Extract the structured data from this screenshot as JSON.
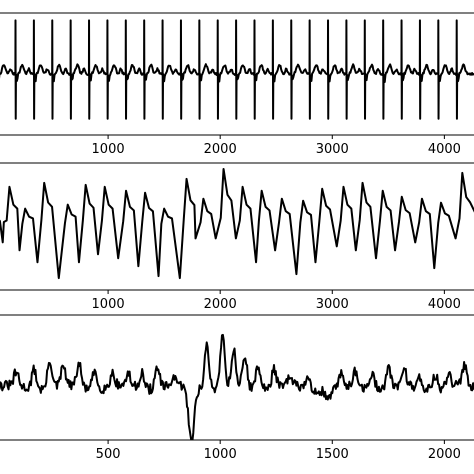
{
  "chart_data": [
    {
      "type": "line",
      "signal": "ecg",
      "xlim": [
        0,
        4300
      ],
      "ylim": [
        -1.5,
        1.5
      ],
      "xticks": [
        1000,
        2000,
        3000,
        4000
      ],
      "xtick_labels": [
        "1000",
        "2000",
        "3000",
        "4000"
      ],
      "grid": false,
      "beats": 26,
      "beat_start": 10,
      "beat_period": 164,
      "series": [
        {
          "color": "#000000"
        }
      ]
    },
    {
      "type": "line",
      "signal": "pulse",
      "xlim": [
        0,
        4300
      ],
      "ylim": [
        -1.6,
        1.6
      ],
      "xticks": [
        1000,
        2000,
        3000,
        4000
      ],
      "xtick_labels": [
        "1000",
        "2000",
        "3000",
        "4000"
      ],
      "grid": false,
      "series": [
        {
          "color": "#000000"
        }
      ]
    },
    {
      "type": "line",
      "signal": "respiration",
      "xlim": [
        0,
        2150
      ],
      "ylim": [
        -1.6,
        1.6
      ],
      "xticks": [
        500,
        1000,
        1500,
        2000
      ],
      "xtick_labels": [
        "500",
        "1000",
        "1500",
        "2000"
      ],
      "grid": false,
      "series": [
        {
          "color": "#000000"
        }
      ]
    }
  ]
}
